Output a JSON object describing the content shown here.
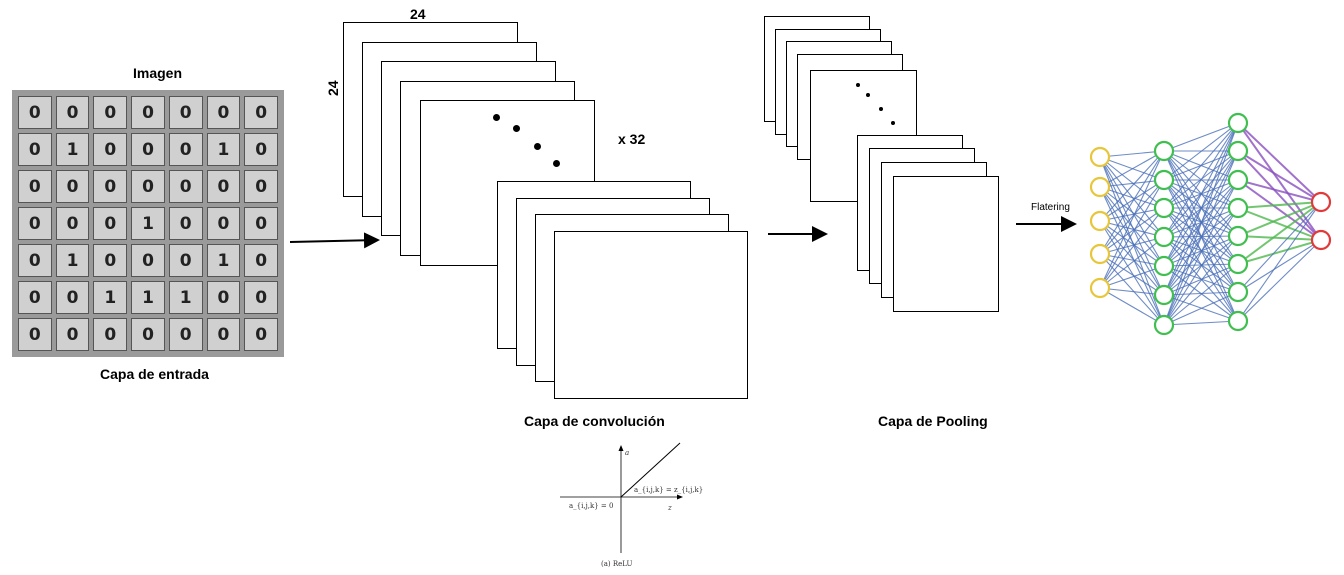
{
  "input": {
    "title": "Imagen",
    "caption": "Capa de entrada",
    "matrix": [
      [
        "0",
        "0",
        "0",
        "0",
        "0",
        "0",
        "0"
      ],
      [
        "0",
        "1",
        "0",
        "0",
        "0",
        "1",
        "0"
      ],
      [
        "0",
        "0",
        "0",
        "0",
        "0",
        "0",
        "0"
      ],
      [
        "0",
        "0",
        "0",
        "1",
        "0",
        "0",
        "0"
      ],
      [
        "0",
        "1",
        "0",
        "0",
        "0",
        "1",
        "0"
      ],
      [
        "0",
        "0",
        "1",
        "1",
        "1",
        "0",
        "0"
      ],
      [
        "0",
        "0",
        "0",
        "0",
        "0",
        "0",
        "0"
      ]
    ]
  },
  "conv": {
    "width_label": "24",
    "height_label": "24",
    "depth_label": "x 32",
    "caption": "Capa de convolución"
  },
  "pool": {
    "caption": "Capa de Pooling"
  },
  "flatten": {
    "label": "Flatering"
  },
  "relu": {
    "y_axis": "a",
    "x_axis": "z",
    "left_eq": "a_{i,j,k} = 0",
    "right_eq": "a_{i,j,k} = z_{i,j,k}",
    "caption": "(a) ReLU"
  },
  "network": {
    "layers": [
      5,
      7,
      8,
      2
    ],
    "colors": {
      "input": "#e8c63a",
      "hidden": "#3fbf4f",
      "output": "#e03a3a",
      "edge": "#4a6fb8",
      "edge_purple": "#8a4fbf",
      "edge_green": "#4fb84f"
    }
  }
}
